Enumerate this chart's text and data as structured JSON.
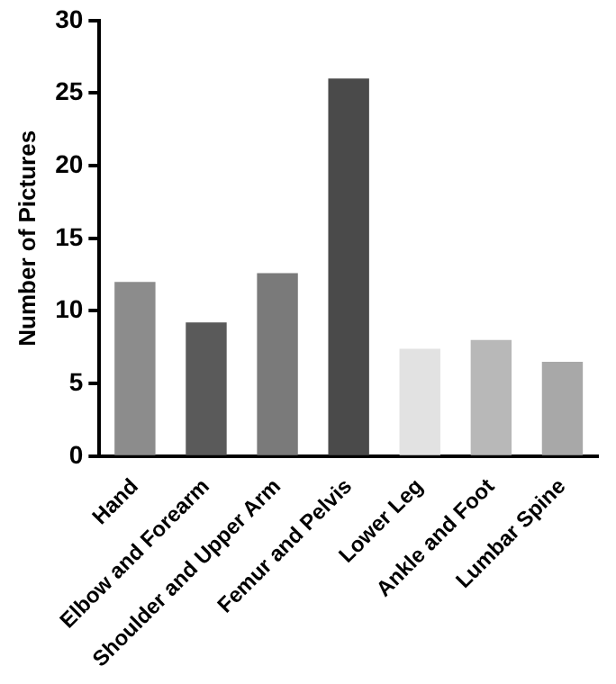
{
  "chart_data": {
    "type": "bar",
    "ylabel": "Number of Pictures",
    "categories": [
      "Hand",
      "Elbow and Forearm",
      "Shoulder and Upper Arm",
      "Femur and Pelvis",
      "Lower Leg",
      "Ankle and Foot",
      "Lumbar Spine"
    ],
    "values": [
      12,
      9.2,
      12.6,
      26,
      7.4,
      8,
      6.5
    ],
    "colors": [
      "#8c8c8c",
      "#5a5a5a",
      "#7a7a7a",
      "#4a4a4a",
      "#e2e2e2",
      "#b8b8b8",
      "#a8a8a8"
    ],
    "ylim": [
      0,
      30
    ],
    "yticks": [
      0,
      5,
      10,
      15,
      20,
      25,
      30
    ],
    "grid": false,
    "legend": false
  }
}
